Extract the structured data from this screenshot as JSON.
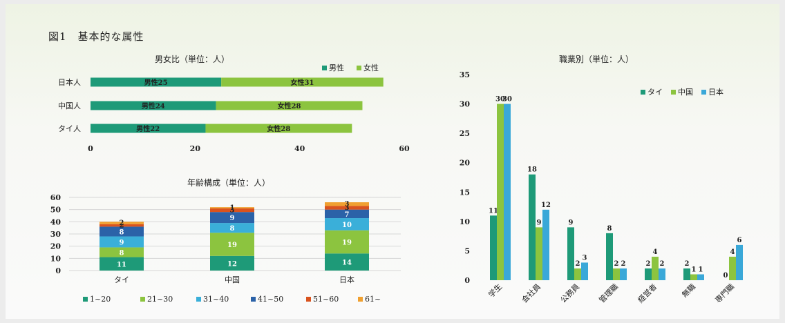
{
  "figure_title": "図1　基本的な属性",
  "colors": {
    "male": "#1e9a78",
    "female": "#8cc43f",
    "thai": "#1e9a78",
    "china": "#8cc43f",
    "japan": "#3aa8d8",
    "age_1_20": "#1e9a78",
    "age_21_30": "#8cc43f",
    "age_31_40": "#3aafd9",
    "age_41_50": "#2b62a8",
    "age_51_60": "#d9531e",
    "age_61": "#f0a030"
  },
  "chart_data": [
    {
      "type": "bar",
      "orientation": "horizontal",
      "stacked": true,
      "title": "男女比（単位：人）",
      "categories": [
        "日本人",
        "中国人",
        "タイ人"
      ],
      "series": [
        {
          "name": "男性",
          "values": [
            25,
            24,
            22
          ],
          "labels": [
            "男性25",
            "男性24",
            "男性22"
          ]
        },
        {
          "name": "女性",
          "values": [
            31,
            28,
            28
          ],
          "labels": [
            "女性31",
            "女性28",
            "女性28"
          ]
        }
      ],
      "xlim": [
        0,
        60
      ],
      "xticks": [
        "0",
        "20",
        "40",
        "60"
      ],
      "legend": "top-right"
    },
    {
      "type": "bar",
      "stacked": true,
      "title": "年齢構成（単位：人）",
      "categories": [
        "タイ",
        "中国",
        "日本"
      ],
      "series": [
        {
          "name": "1~20",
          "values": [
            11,
            12,
            14
          ]
        },
        {
          "name": "21~30",
          "values": [
            8,
            19,
            19
          ]
        },
        {
          "name": "31~40",
          "values": [
            9,
            8,
            10
          ]
        },
        {
          "name": "41~50",
          "values": [
            8,
            9,
            7
          ]
        },
        {
          "name": "51~60",
          "values": [
            2,
            3,
            3
          ]
        },
        {
          "name": "61~",
          "values": [
            2,
            1,
            3
          ]
        }
      ],
      "ylim": [
        0,
        60
      ],
      "yticks": [
        "0",
        "10",
        "20",
        "30",
        "40",
        "50",
        "60"
      ],
      "legend": "bottom"
    },
    {
      "type": "bar",
      "title": "職業別（単位：人）",
      "categories": [
        "学生",
        "会社員",
        "公務員",
        "管理職",
        "経営者",
        "無職",
        "専門職"
      ],
      "series": [
        {
          "name": "タイ",
          "values": [
            11,
            18,
            9,
            8,
            2,
            2,
            0
          ]
        },
        {
          "name": "中国",
          "values": [
            30,
            9,
            2,
            2,
            4,
            1,
            4
          ]
        },
        {
          "name": "日本",
          "values": [
            30,
            12,
            3,
            2,
            2,
            1,
            6
          ]
        }
      ],
      "ylim": [
        0,
        35
      ],
      "yticks": [
        "0",
        "5",
        "10",
        "15",
        "20",
        "25",
        "30",
        "35"
      ],
      "legend": "top-right"
    }
  ]
}
